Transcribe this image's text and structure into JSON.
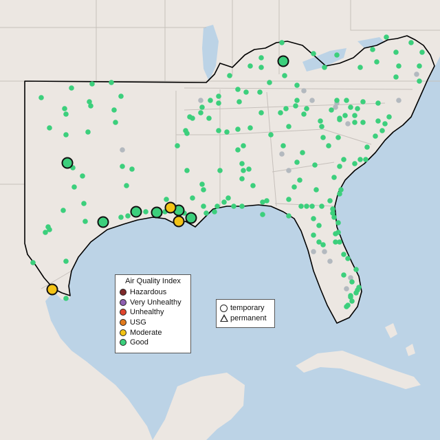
{
  "legend": {
    "title": "Air Quality Index",
    "categories": [
      {
        "label": "Hazardous",
        "color": "#7e2a2a"
      },
      {
        "label": "Very Unhealthy",
        "color": "#8e5fb0"
      },
      {
        "label": "Unhealthy",
        "color": "#e0462f"
      },
      {
        "label": "USG",
        "color": "#e07a1e"
      },
      {
        "label": "Moderate",
        "color": "#f3c316"
      },
      {
        "label": "Good",
        "color": "#3ccf7c"
      }
    ],
    "types": [
      {
        "label": "temporary",
        "shape": "circle"
      },
      {
        "label": "permanent",
        "shape": "triangle"
      }
    ]
  },
  "colors": {
    "water": "#bcd3e6",
    "land": "#ece7e2",
    "border": "#c6c0bb",
    "region_outline": "#000000",
    "inactive_monitor": "#b3b9bf"
  }
}
